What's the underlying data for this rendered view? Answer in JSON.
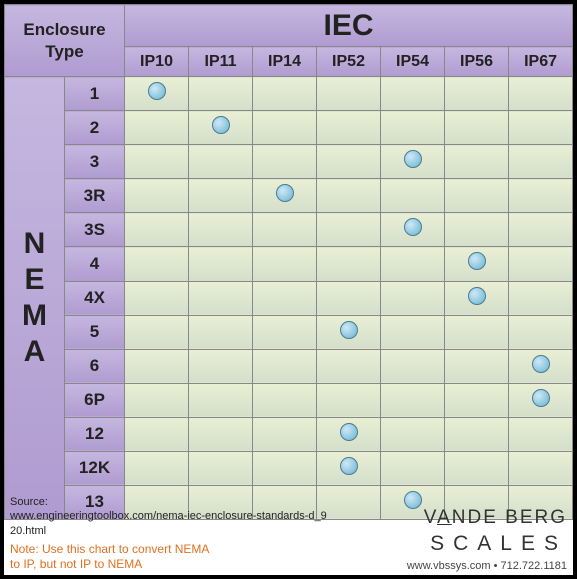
{
  "header": {
    "enclosure_label_l1": "Enclosure",
    "enclosure_label_l2": "Type",
    "iec_label": "IEC"
  },
  "columns": [
    "IP10",
    "IP11",
    "IP14",
    "IP52",
    "IP54",
    "IP56",
    "IP67"
  ],
  "side_vertical": "NEMA",
  "rows": [
    {
      "label": "1",
      "marks": [
        1,
        0,
        0,
        0,
        0,
        0,
        0
      ]
    },
    {
      "label": "2",
      "marks": [
        0,
        1,
        0,
        0,
        0,
        0,
        0
      ]
    },
    {
      "label": "3",
      "marks": [
        0,
        0,
        0,
        0,
        1,
        0,
        0
      ]
    },
    {
      "label": "3R",
      "marks": [
        0,
        0,
        1,
        0,
        0,
        0,
        0
      ]
    },
    {
      "label": "3S",
      "marks": [
        0,
        0,
        0,
        0,
        1,
        0,
        0
      ]
    },
    {
      "label": "4",
      "marks": [
        0,
        0,
        0,
        0,
        0,
        1,
        0
      ]
    },
    {
      "label": "4X",
      "marks": [
        0,
        0,
        0,
        0,
        0,
        1,
        0
      ]
    },
    {
      "label": "5",
      "marks": [
        0,
        0,
        0,
        1,
        0,
        0,
        0
      ]
    },
    {
      "label": "6",
      "marks": [
        0,
        0,
        0,
        0,
        0,
        0,
        1
      ]
    },
    {
      "label": "6P",
      "marks": [
        0,
        0,
        0,
        0,
        0,
        0,
        1
      ]
    },
    {
      "label": "12",
      "marks": [
        0,
        0,
        0,
        1,
        0,
        0,
        0
      ]
    },
    {
      "label": "12K",
      "marks": [
        0,
        0,
        0,
        1,
        0,
        0,
        0
      ]
    },
    {
      "label": "13",
      "marks": [
        0,
        0,
        0,
        0,
        1,
        0,
        0
      ]
    }
  ],
  "footer": {
    "source_label": "Source:",
    "source_url": "www.engineeringtoolbox.com/nema-iec-enclosure-standards-d_920.html",
    "note_l1": "Note: Use this chart to convert NEMA",
    "note_l2": "to IP, but not IP to NEMA",
    "brand_top": "VANDE BERG",
    "brand_bottom": "SCALES",
    "brand_contact": "www.vbssys.com • 712.722.1181"
  },
  "style": {
    "dot_fill": "#8fc8e0",
    "dot_border": "#4a7a90",
    "purple_grad_top": "#c5b7e0",
    "purple_grad_bot": "#b09bd0",
    "data_grad_top": "#e9efd4",
    "data_grad_bot": "#d4decb",
    "grid_color": "#888888",
    "note_color": "#e07020"
  }
}
